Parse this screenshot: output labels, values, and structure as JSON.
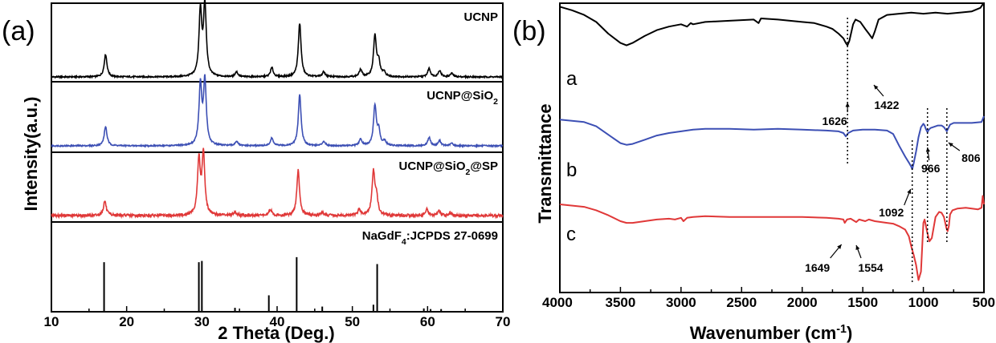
{
  "chart_data": [
    {
      "type": "line",
      "panel_label": "(a)",
      "xlabel": "2 Theta (Deg.)",
      "ylabel": "Intensity(a.u.)",
      "xlim": [
        10,
        70
      ],
      "xticks": [
        10,
        20,
        30,
        40,
        50,
        60,
        70
      ],
      "layout": "stacked",
      "series": [
        {
          "name": "UCNP",
          "color": "#000000",
          "peaks": [
            [
              17.2,
              0.32
            ],
            [
              29.8,
              0.92
            ],
            [
              30.4,
              1.0
            ],
            [
              34.6,
              0.07
            ],
            [
              39.3,
              0.13
            ],
            [
              43.0,
              0.76
            ],
            [
              46.2,
              0.07
            ],
            [
              51.1,
              0.1
            ],
            [
              53.0,
              0.58
            ],
            [
              53.5,
              0.2
            ],
            [
              54.2,
              0.06
            ],
            [
              60.2,
              0.12
            ],
            [
              61.6,
              0.09
            ],
            [
              63.2,
              0.05
            ]
          ]
        },
        {
          "name": "UCNP@SiO₂",
          "color": "#3c4fb4",
          "peaks": [
            [
              17.2,
              0.3
            ],
            [
              29.8,
              0.93
            ],
            [
              30.4,
              1.0
            ],
            [
              34.6,
              0.07
            ],
            [
              39.3,
              0.12
            ],
            [
              43.0,
              0.8
            ],
            [
              46.2,
              0.07
            ],
            [
              51.1,
              0.1
            ],
            [
              53.0,
              0.62
            ],
            [
              53.5,
              0.22
            ],
            [
              54.3,
              0.07
            ],
            [
              60.2,
              0.13
            ],
            [
              61.6,
              0.08
            ],
            [
              63.2,
              0.04
            ]
          ]
        },
        {
          "name": "UCNP@SiO₂@SP",
          "color": "#e03838",
          "peaks": [
            [
              17.1,
              0.24
            ],
            [
              29.6,
              0.9
            ],
            [
              30.2,
              1.0
            ],
            [
              34.4,
              0.06
            ],
            [
              39.1,
              0.1
            ],
            [
              42.8,
              0.74
            ],
            [
              46.0,
              0.05
            ],
            [
              50.9,
              0.1
            ],
            [
              52.8,
              0.7
            ],
            [
              53.2,
              0.28
            ],
            [
              59.9,
              0.1
            ],
            [
              61.5,
              0.07
            ],
            [
              63.0,
              0.04
            ]
          ]
        },
        {
          "name": "NaGdF₄:JCPDS 27-0699",
          "color": "#000000",
          "style": "sticks",
          "x": [
            17.0,
            29.6,
            30.0,
            34.4,
            38.9,
            42.6,
            46.0,
            52.8,
            53.3,
            59.5,
            60.4,
            61.8
          ],
          "values": [
            0.78,
            0.78,
            0.8,
            0.05,
            0.25,
            0.86,
            0.07,
            0.1,
            0.75,
            0.04,
            0.03,
            0.03
          ]
        }
      ]
    },
    {
      "type": "line",
      "panel_label": "(b)",
      "xlabel": "Wavenumber (cm⁻¹)",
      "ylabel": "Transmittance",
      "xlim": [
        4000,
        500
      ],
      "xticks": [
        4000,
        3500,
        3000,
        2500,
        2000,
        1500,
        1000,
        500
      ],
      "series": [
        {
          "name": "a",
          "color": "#000000",
          "x": [
            4000,
            3900,
            3800,
            3700,
            3600,
            3500,
            3450,
            3400,
            3300,
            3200,
            3100,
            3000,
            2950,
            2920,
            2900,
            2800,
            2600,
            2400,
            2360,
            2340,
            2200,
            2000,
            1900,
            1800,
            1750,
            1700,
            1660,
            1640,
            1626,
            1610,
            1580,
            1560,
            1520,
            1480,
            1450,
            1422,
            1400,
            1370,
            1300,
            1200,
            1100,
            1000,
            900,
            800,
            700,
            600,
            530,
            510,
            500
          ],
          "values": [
            97,
            94,
            90,
            84,
            74,
            66,
            64,
            66,
            72,
            77,
            80,
            82,
            80,
            83,
            82,
            84,
            85,
            86,
            83,
            87,
            86,
            84,
            83,
            80,
            78,
            74,
            70,
            66,
            64,
            68,
            82,
            86,
            84,
            78,
            74,
            70,
            76,
            86,
            90,
            91,
            92,
            91,
            92,
            91,
            92,
            93,
            96,
            99,
            100
          ]
        },
        {
          "name": "b",
          "color": "#3c4fb4",
          "x": [
            4000,
            3800,
            3700,
            3600,
            3500,
            3450,
            3400,
            3300,
            3200,
            3100,
            3000,
            2900,
            2800,
            2600,
            2400,
            2200,
            2000,
            1800,
            1700,
            1660,
            1640,
            1620,
            1580,
            1500,
            1400,
            1300,
            1250,
            1200,
            1150,
            1120,
            1100,
            1092,
            1080,
            1060,
            1040,
            1020,
            1000,
            990,
            980,
            966,
            955,
            940,
            920,
            880,
            850,
            830,
            810,
            806,
            800,
            780,
            750,
            700,
            600,
            520,
            500
          ],
          "values": [
            96,
            93,
            88,
            78,
            68,
            66,
            67,
            72,
            77,
            80,
            82,
            84,
            85,
            85,
            84,
            85,
            84,
            83,
            82,
            80,
            76,
            80,
            83,
            84,
            84,
            83,
            79,
            65,
            52,
            45,
            40,
            37,
            44,
            58,
            75,
            87,
            91,
            89,
            85,
            81,
            84,
            86,
            87,
            89,
            89,
            87,
            83,
            82,
            84,
            90,
            92,
            92,
            92,
            93,
            100
          ]
        },
        {
          "name": "c",
          "color": "#e03838",
          "x": [
            4000,
            3800,
            3700,
            3600,
            3500,
            3450,
            3400,
            3300,
            3200,
            3100,
            3050,
            3000,
            2980,
            2950,
            2900,
            2800,
            2600,
            2400,
            2200,
            2000,
            1800,
            1700,
            1660,
            1649,
            1630,
            1600,
            1554,
            1530,
            1480,
            1450,
            1400,
            1300,
            1250,
            1200,
            1150,
            1120,
            1100,
            1080,
            1060,
            1040,
            1020,
            1000,
            990,
            970,
            950,
            930,
            900,
            870,
            850,
            830,
            810,
            800,
            790,
            780,
            760,
            720,
            650,
            600,
            550,
            520,
            510,
            500
          ],
          "values": [
            100,
            97,
            93,
            87,
            80,
            78,
            78,
            80,
            82,
            83,
            82,
            84,
            80,
            84,
            85,
            86,
            85,
            85,
            85,
            85,
            84,
            83,
            82,
            78,
            82,
            83,
            79,
            82,
            80,
            82,
            80,
            78,
            77,
            74,
            70,
            62,
            50,
            40,
            28,
            10,
            20,
            78,
            82,
            68,
            56,
            60,
            85,
            91,
            90,
            85,
            72,
            68,
            74,
            88,
            93,
            95,
            96,
            95,
            94,
            96,
            110,
            100
          ]
        }
      ],
      "annotations": [
        {
          "label": "1626",
          "x": 1626,
          "series": "a"
        },
        {
          "label": "1422",
          "x": 1422,
          "series": "a"
        },
        {
          "label": "1092",
          "x": 1092,
          "series": "b"
        },
        {
          "label": "966",
          "x": 966,
          "series": "b"
        },
        {
          "label": "806",
          "x": 806,
          "series": "b"
        },
        {
          "label": "1649",
          "x": 1649,
          "series": "c"
        },
        {
          "label": "1554",
          "x": 1554,
          "series": "c"
        }
      ],
      "dotted_guides": [
        1626,
        1092,
        966,
        806
      ]
    }
  ]
}
